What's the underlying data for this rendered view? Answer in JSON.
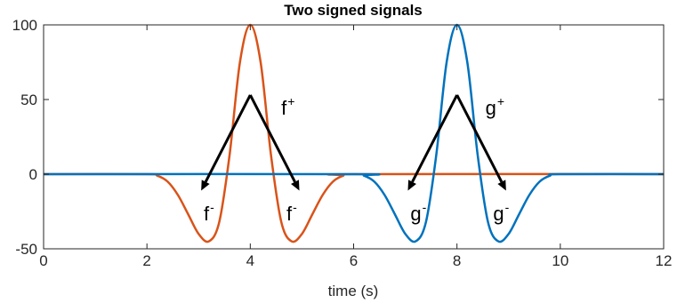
{
  "chart_data": {
    "type": "line",
    "title": "Two signed signals",
    "xlabel": "time (s)",
    "ylabel": "",
    "xlim": [
      0,
      12
    ],
    "ylim": [
      -50,
      100
    ],
    "xticks": [
      0,
      2,
      4,
      6,
      8,
      10,
      12
    ],
    "yticks": [
      -50,
      0,
      50,
      100
    ],
    "grid": false,
    "box": true,
    "series": [
      {
        "color": "#D95319",
        "x": [
          0,
          2.0,
          2.2,
          2.4,
          2.6,
          2.8,
          3.0,
          3.2,
          3.4,
          3.6,
          3.8,
          4.0,
          4.2,
          4.4,
          4.6,
          4.8,
          5.0,
          5.2,
          5.4,
          5.6,
          5.8,
          6.0,
          12
        ],
        "y": [
          0,
          0,
          -1,
          -5,
          -14,
          -27,
          -40,
          -45,
          -32,
          13,
          75,
          100,
          75,
          13,
          -32,
          -45,
          -40,
          -27,
          -14,
          -5,
          -1,
          0,
          0
        ]
      },
      {
        "color": "#0072BD",
        "x": [
          0,
          6.0,
          6.2,
          6.4,
          6.6,
          6.8,
          7.0,
          7.2,
          7.4,
          7.6,
          7.8,
          8.0,
          8.2,
          8.4,
          8.6,
          8.8,
          9.0,
          9.2,
          9.4,
          9.6,
          9.8,
          10.0,
          12
        ],
        "y": [
          0,
          0,
          -1,
          -5,
          -14,
          -27,
          -40,
          -45,
          -32,
          13,
          75,
          100,
          75,
          13,
          -32,
          -45,
          -40,
          -27,
          -14,
          -5,
          -1,
          0,
          0
        ]
      }
    ],
    "annotations": [
      {
        "base": "f",
        "sup": "+",
        "x": 4.6,
        "y": 40
      },
      {
        "base": "f",
        "sup": "-",
        "x": 3.1,
        "y": -31
      },
      {
        "base": "f",
        "sup": "-",
        "x": 4.7,
        "y": -31
      },
      {
        "base": "g",
        "sup": "+",
        "x": 8.55,
        "y": 40
      },
      {
        "base": "g",
        "sup": "-",
        "x": 7.1,
        "y": -31
      },
      {
        "base": "g",
        "sup": "-",
        "x": 8.7,
        "y": -31
      }
    ],
    "arrows": [
      {
        "from": [
          4.0,
          53
        ],
        "to": [
          3.05,
          -11
        ]
      },
      {
        "from": [
          4.0,
          53
        ],
        "to": [
          4.95,
          -11
        ]
      },
      {
        "from": [
          8.0,
          53
        ],
        "to": [
          7.05,
          -11
        ]
      },
      {
        "from": [
          8.0,
          53
        ],
        "to": [
          8.95,
          -11
        ]
      }
    ]
  }
}
